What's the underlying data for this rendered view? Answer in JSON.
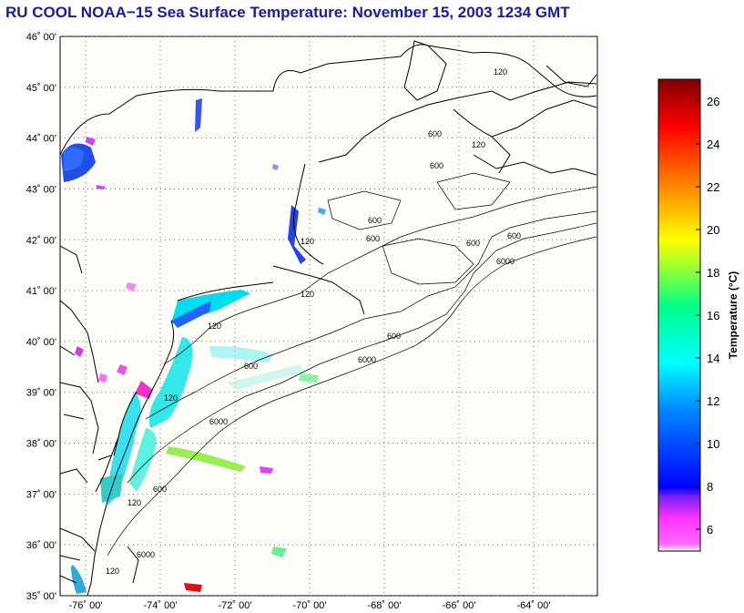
{
  "title": "RU COOL  NOAA−15  Sea Surface Temperature:  November 15, 2003 1234 GMT",
  "latitude_labels": [
    "46˚ 00'",
    "45˚ 00'",
    "44˚ 00'",
    "43˚ 00'",
    "42˚ 00'",
    "41˚ 00'",
    "40˚ 00'",
    "39˚ 00'",
    "38˚ 00'",
    "37˚ 00'",
    "36˚ 00'",
    "35˚ 00'"
  ],
  "longitude_labels": [
    "-76˚ 00'",
    "-74˚ 00'",
    "-72˚ 00'",
    "-70˚ 00'",
    "-68˚ 00'",
    "-66˚ 00'",
    "-64˚ 00'"
  ],
  "contour_labels": {
    "c120": "120",
    "c600": "600",
    "c6000": "6000"
  },
  "colorbar": {
    "label": "Temperature (°C)",
    "ticks": [
      "26",
      "24",
      "22",
      "20",
      "18",
      "16",
      "14",
      "12",
      "10",
      "8",
      "6"
    ],
    "colors": {
      "min": "#ffffff",
      "magenta": "#ff33ff",
      "blue": "#0000ff",
      "cyan": "#00ffff",
      "green": "#66ff33",
      "yellow": "#ffff00",
      "orange": "#ff9900",
      "red": "#ff0000",
      "darkred": "#800000"
    }
  }
}
